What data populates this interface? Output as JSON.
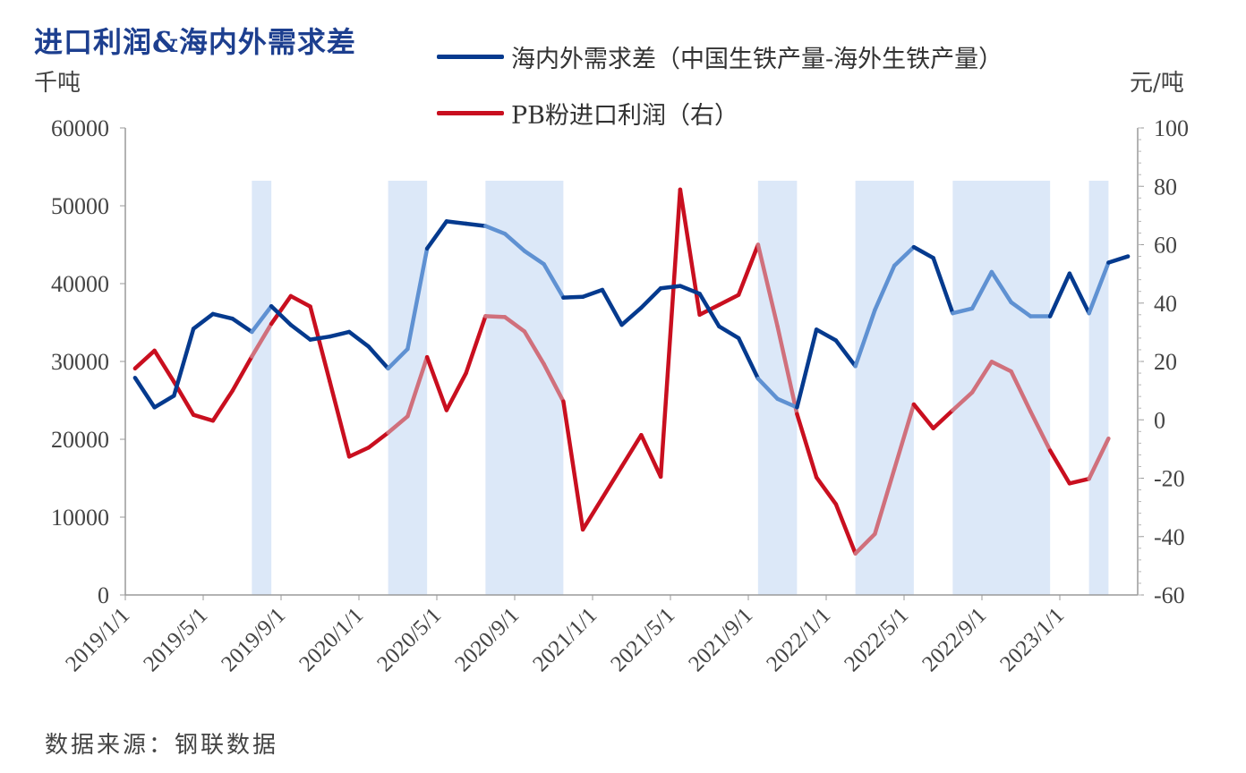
{
  "title": "进口利润&海内外需求差",
  "left_unit": "千吨",
  "right_unit": "元/吨",
  "source": "数据来源：钢联数据",
  "colors": {
    "blue": "#053a8e",
    "blue_light": "#5f91d2",
    "red": "#c90f1f",
    "red_light": "#d0707c",
    "band": "#dce8f8",
    "axis": "#9a9a9a",
    "title": "#1d3f8f"
  },
  "chart_data": {
    "type": "line",
    "title": "进口利润&海内外需求差",
    "ylabel_left": "千吨",
    "ylabel_right": "元/吨",
    "ylim_left": [
      0,
      60000
    ],
    "ylim_right": [
      -60,
      100
    ],
    "yticks_left": [
      "0",
      "10000",
      "20000",
      "30000",
      "40000",
      "50000",
      "60000"
    ],
    "yticks_right": [
      "-60",
      "-40",
      "-20",
      "0",
      "20",
      "40",
      "60",
      "80",
      "100"
    ],
    "xticks": [
      "2019/1/1",
      "2019/5/1",
      "2019/9/1",
      "2020/1/1",
      "2020/5/1",
      "2020/9/1",
      "2021/1/1",
      "2021/5/1",
      "2021/9/1",
      "2022/1/1",
      "2022/5/1",
      "2022/9/1",
      "2023/1/1"
    ],
    "x_start": "2019/1",
    "x_frequency": "monthly",
    "grid": false,
    "legend_position": "top",
    "series": [
      {
        "name": "海内外需求差（中国生铁产量-海外生铁产量）",
        "axis": "left",
        "values": [
          27900,
          24100,
          25600,
          34200,
          36100,
          35500,
          33800,
          37100,
          34700,
          32800,
          33200,
          33800,
          31900,
          29100,
          31600,
          44500,
          48000,
          47700,
          47400,
          46400,
          44200,
          42500,
          38200,
          38300,
          39200,
          34700,
          36900,
          39400,
          39700,
          38700,
          34500,
          33000,
          27800,
          25200,
          24100,
          34100,
          32700,
          29400,
          36600,
          42300,
          44700,
          43300,
          36200,
          36800,
          41500,
          37600,
          35800,
          35800,
          41300,
          36200,
          42700,
          43500
        ]
      },
      {
        "name": "PB粉进口利润（右）",
        "axis": "right",
        "values": [
          17.6,
          23.7,
          13.0,
          1.7,
          -0.3,
          9.9,
          21.7,
          32.9,
          42.4,
          38.8,
          13.2,
          -12.6,
          -9.5,
          -4.4,
          1.2,
          21.5,
          3.3,
          16.0,
          35.5,
          35.2,
          30.3,
          19.1,
          6.3,
          -37.6,
          -26.8,
          -16.0,
          -5.2,
          -19.5,
          78.9,
          36.0,
          39.4,
          42.8,
          60.0,
          32.0,
          2.0,
          -19.7,
          -28.9,
          -45.8,
          -39.1,
          -16.9,
          5.3,
          -2.9,
          3.3,
          9.4,
          19.9,
          16.6,
          2.8,
          -10.5,
          -21.8,
          -20.2,
          -6.4
        ]
      }
    ],
    "shaded_periods": [
      {
        "start": "2019/7",
        "end": "2019/8"
      },
      {
        "start": "2020/2",
        "end": "2020/4"
      },
      {
        "start": "2020/7",
        "end": "2020/11"
      },
      {
        "start": "2021/9",
        "end": "2021/11"
      },
      {
        "start": "2022/2",
        "end": "2022/5"
      },
      {
        "start": "2022/7",
        "end": "2022/12"
      },
      {
        "start": "2023/2",
        "end": "2023/3"
      }
    ]
  }
}
